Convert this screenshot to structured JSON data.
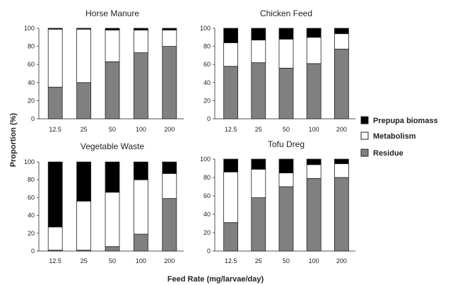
{
  "chart_data": [
    {
      "type": "bar",
      "stacked": true,
      "title": "Horse Manure",
      "categories": [
        "12.5",
        "25",
        "50",
        "100",
        "200"
      ],
      "ylim": [
        0,
        100
      ],
      "yticks": [
        "0",
        "20",
        "40",
        "60",
        "80",
        "100"
      ],
      "series": [
        {
          "name": "Residue",
          "values": [
            35,
            40,
            63,
            73,
            80
          ]
        },
        {
          "name": "Metabolism",
          "values": [
            64,
            59,
            35,
            25,
            18
          ]
        },
        {
          "name": "Prepupa biomass",
          "values": [
            1,
            1,
            2,
            2,
            2
          ]
        }
      ]
    },
    {
      "type": "bar",
      "stacked": true,
      "title": "Chicken Feed",
      "categories": [
        "12.5",
        "25",
        "50",
        "100",
        "200"
      ],
      "ylim": [
        0,
        100
      ],
      "yticks": [
        "0",
        "20",
        "40",
        "60",
        "80",
        "100"
      ],
      "series": [
        {
          "name": "Residue",
          "values": [
            58,
            62,
            56,
            61,
            77
          ]
        },
        {
          "name": "Metabolism",
          "values": [
            26,
            25,
            32,
            29,
            17
          ]
        },
        {
          "name": "Prepupa biomass",
          "values": [
            16,
            13,
            12,
            10,
            6
          ]
        }
      ]
    },
    {
      "type": "bar",
      "stacked": true,
      "title": "Vegetable Waste",
      "categories": [
        "12.5",
        "25",
        "50",
        "100",
        "200"
      ],
      "ylim": [
        0,
        100
      ],
      "yticks": [
        "0",
        "20",
        "40",
        "60",
        "80",
        "100"
      ],
      "series": [
        {
          "name": "Residue",
          "values": [
            1,
            1,
            5,
            19,
            59
          ]
        },
        {
          "name": "Metabolism",
          "values": [
            26,
            55,
            61,
            61,
            28
          ]
        },
        {
          "name": "Prepupa biomass",
          "values": [
            73,
            44,
            34,
            20,
            13
          ]
        }
      ]
    },
    {
      "type": "bar",
      "stacked": true,
      "title": "Tofu Dreg",
      "categories": [
        "12.5",
        "25",
        "50",
        "100",
        "200"
      ],
      "ylim": [
        0,
        100
      ],
      "yticks": [
        "0",
        "20",
        "40",
        "60",
        "80",
        "100"
      ],
      "series": [
        {
          "name": "Residue",
          "values": [
            31,
            58,
            70,
            79,
            80
          ]
        },
        {
          "name": "Metabolism",
          "values": [
            55,
            31,
            15,
            15,
            15
          ]
        },
        {
          "name": "Prepupa biomass",
          "values": [
            14,
            11,
            15,
            6,
            5
          ]
        }
      ]
    }
  ],
  "ylabel": "Proportion (%)",
  "xlabel": "Feed Rate (mg/larvae/day)",
  "legend": {
    "placement": "right",
    "entries": [
      "Prepupa biomass",
      "Metabolism",
      "Residue"
    ]
  },
  "colors": {
    "Residue": "#808080",
    "Metabolism": "#ffffff",
    "Prepupa biomass": "#000000",
    "outline": "#222222"
  }
}
